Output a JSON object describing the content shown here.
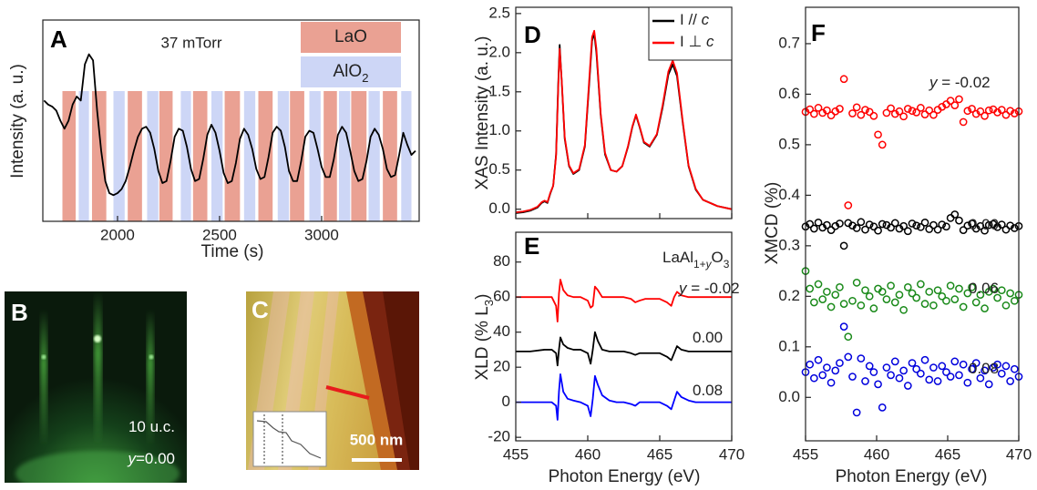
{
  "chart_data": [
    {
      "type": "line",
      "panel_label": "A",
      "title": "37 mTorr",
      "xlabel": "Time (s)",
      "ylabel": "Intensity (a. u.)",
      "xlim": [
        1634,
        3478
      ],
      "xticks": [
        2000,
        2500,
        3000
      ],
      "ylim": [
        0,
        1
      ],
      "x": [
        1640,
        1660,
        1680,
        1700,
        1720,
        1740,
        1760,
        1780,
        1800,
        1820,
        1840,
        1860,
        1880,
        1900,
        1920,
        1940,
        1960,
        1980,
        2000,
        2020,
        2040,
        2060,
        2080,
        2100,
        2120,
        2140,
        2160,
        2180,
        2200,
        2220,
        2240,
        2260,
        2280,
        2300,
        2320,
        2340,
        2360,
        2380,
        2400,
        2420,
        2440,
        2460,
        2480,
        2500,
        2520,
        2540,
        2560,
        2580,
        2600,
        2620,
        2640,
        2660,
        2680,
        2700,
        2720,
        2740,
        2760,
        2780,
        2800,
        2820,
        2840,
        2860,
        2880,
        2900,
        2920,
        2940,
        2960,
        2980,
        3000,
        3020,
        3040,
        3060,
        3080,
        3100,
        3120,
        3140,
        3160,
        3180,
        3200,
        3220,
        3240,
        3260,
        3280,
        3300,
        3320,
        3340,
        3360,
        3380,
        3400,
        3420,
        3440,
        3460
      ],
      "series": [
        {
          "color": "#000000",
          "values": [
            0.6,
            0.58,
            0.57,
            0.55,
            0.5,
            0.46,
            0.5,
            0.58,
            0.62,
            0.6,
            0.78,
            0.83,
            0.8,
            0.55,
            0.35,
            0.2,
            0.14,
            0.13,
            0.14,
            0.16,
            0.2,
            0.27,
            0.35,
            0.42,
            0.46,
            0.47,
            0.44,
            0.36,
            0.25,
            0.19,
            0.2,
            0.3,
            0.42,
            0.46,
            0.45,
            0.37,
            0.26,
            0.2,
            0.21,
            0.31,
            0.43,
            0.48,
            0.44,
            0.35,
            0.24,
            0.19,
            0.2,
            0.29,
            0.41,
            0.46,
            0.43,
            0.36,
            0.26,
            0.21,
            0.22,
            0.32,
            0.44,
            0.47,
            0.45,
            0.37,
            0.25,
            0.2,
            0.2,
            0.3,
            0.42,
            0.45,
            0.44,
            0.36,
            0.27,
            0.22,
            0.22,
            0.31,
            0.43,
            0.47,
            0.44,
            0.35,
            0.25,
            0.2,
            0.21,
            0.3,
            0.42,
            0.46,
            0.43,
            0.36,
            0.26,
            0.22,
            0.23,
            0.33,
            0.44,
            0.38,
            0.33,
            0.35
          ]
        }
      ],
      "shutters": [
        {
          "name": [
            {
              "text": "LaO"
            }
          ],
          "color": "#eaa193",
          "intervals": [
            [
              1730,
              1795
            ],
            [
              1875,
              1945
            ],
            [
              2050,
              2120
            ],
            [
              2205,
              2270
            ],
            [
              2370,
              2440
            ],
            [
              2525,
              2600
            ],
            [
              2690,
              2760
            ],
            [
              2845,
              2915
            ],
            [
              3010,
              3075
            ],
            [
              3145,
              3220
            ],
            [
              3300,
              3370
            ]
          ]
        },
        {
          "name": [
            {
              "text": "AlO"
            },
            {
              "text": "2",
              "sub": true
            }
          ],
          "color": "#cdd6f6",
          "intervals": [
            [
              1810,
              1860
            ],
            [
              1980,
              2035
            ],
            [
              2145,
              2200
            ],
            [
              2310,
              2360
            ],
            [
              2460,
              2515
            ],
            [
              2620,
              2675
            ],
            [
              2785,
              2840
            ],
            [
              2940,
              2995
            ],
            [
              3085,
              3140
            ],
            [
              3230,
              3285
            ],
            [
              3390,
              3440
            ]
          ]
        }
      ]
    },
    {
      "type": "line",
      "panel_label": "D",
      "ylabel": "XAS Intensity (a. u.)",
      "xlim": [
        455,
        470
      ],
      "xticks": [
        455,
        460,
        465,
        470
      ],
      "xtick_labels": false,
      "ylim": [
        -0.12,
        2.58
      ],
      "yticks": [
        {
          "value": 0,
          "label": "0.0"
        },
        {
          "value": 0.5,
          "label": "0.5"
        },
        {
          "value": 1,
          "label": "1.0"
        },
        {
          "value": 1.5,
          "label": "1.5"
        },
        {
          "value": 2,
          "label": "2.0"
        },
        {
          "value": 2.5,
          "label": "2.5"
        }
      ],
      "legend": "upper right",
      "x": [
        455,
        455.5,
        456,
        456.5,
        456.8,
        457,
        457.2,
        457.4,
        457.6,
        457.8,
        457.95,
        458.05,
        458.2,
        458.4,
        458.7,
        459,
        459.4,
        459.8,
        460.1,
        460.3,
        460.45,
        460.6,
        460.9,
        461.2,
        461.6,
        462,
        462.4,
        462.8,
        463.1,
        463.35,
        463.6,
        463.9,
        464.3,
        464.8,
        465.2,
        465.6,
        465.9,
        466.2,
        466.6,
        467,
        467.5,
        468,
        469,
        470
      ],
      "series": [
        {
          "name": [
            {
              "text": "I // "
            },
            {
              "text": "c",
              "italic": true
            }
          ],
          "color": "#000000",
          "values": [
            -0.05,
            -0.04,
            -0.02,
            0.02,
            0.08,
            0.1,
            0.08,
            0.2,
            0.3,
            0.7,
            1.6,
            2.1,
            1.6,
            0.9,
            0.55,
            0.45,
            0.5,
            0.8,
            1.6,
            2.15,
            2.25,
            2.0,
            1.2,
            0.7,
            0.5,
            0.48,
            0.55,
            0.8,
            1.05,
            1.2,
            1.05,
            0.85,
            0.8,
            0.95,
            1.3,
            1.72,
            1.85,
            1.7,
            1.1,
            0.55,
            0.25,
            0.12,
            0.04,
            0.0
          ]
        },
        {
          "name": [
            {
              "text": "I ⊥ "
            },
            {
              "text": "c",
              "italic": true
            }
          ],
          "color": "#ff0000",
          "values": [
            -0.04,
            -0.03,
            -0.01,
            0.03,
            0.09,
            0.11,
            0.09,
            0.21,
            0.3,
            0.68,
            1.55,
            2.05,
            1.62,
            0.92,
            0.56,
            0.46,
            0.51,
            0.82,
            1.65,
            2.2,
            2.28,
            2.05,
            1.22,
            0.72,
            0.5,
            0.48,
            0.55,
            0.81,
            1.06,
            1.21,
            1.06,
            0.86,
            0.81,
            0.96,
            1.33,
            1.76,
            1.9,
            1.74,
            1.12,
            0.56,
            0.26,
            0.12,
            0.04,
            0.0
          ]
        }
      ]
    },
    {
      "type": "line",
      "panel_label": "E",
      "ylabel": [
        {
          "text": "XLD (% L"
        },
        {
          "text": "3",
          "sub": true
        },
        {
          "text": ")"
        }
      ],
      "xlabel": "Photon Energy (eV)",
      "annotation": [
        {
          "text": "LaAl"
        },
        {
          "text": "1+",
          "sub": true
        },
        {
          "text": "y",
          "sub": true,
          "italic": true
        },
        {
          "text": "O"
        },
        {
          "text": "3",
          "sub": true
        }
      ],
      "xlim": [
        455,
        470
      ],
      "xticks": [
        455,
        460,
        465,
        470
      ],
      "ylim": [
        -22,
        97
      ],
      "yticks": [
        -20,
        0,
        20,
        40,
        60,
        80
      ],
      "x": [
        455,
        456,
        457,
        457.5,
        457.8,
        457.9,
        458.0,
        458.1,
        458.3,
        458.6,
        459,
        459.5,
        460,
        460.2,
        460.35,
        460.5,
        460.7,
        461,
        461.5,
        462,
        462.5,
        463,
        463.3,
        463.6,
        464,
        464.5,
        465,
        465.5,
        465.8,
        466,
        466.2,
        466.5,
        467,
        467.5,
        468,
        469,
        470
      ],
      "series": [
        {
          "name": [
            {
              "text": "y",
              "italic": true
            },
            {
              "text": " = -0.02"
            }
          ],
          "color": "#ff0000",
          "values": [
            60,
            60,
            60,
            60,
            55,
            46,
            62,
            70,
            64,
            61,
            60,
            60,
            58,
            54,
            55,
            66,
            64,
            60,
            60,
            60,
            60,
            59,
            57,
            58,
            59,
            59,
            59,
            57,
            55,
            60,
            63,
            61,
            60,
            60,
            60,
            60,
            60
          ]
        },
        {
          "name": [
            {
              "text": "0.00"
            }
          ],
          "color": "#000000",
          "values": [
            29,
            29,
            30,
            30,
            28,
            21,
            30,
            37,
            33,
            31,
            30,
            30,
            28,
            22,
            30,
            40,
            35,
            30,
            29,
            29,
            29,
            28,
            27,
            28,
            28,
            28,
            28,
            26,
            24,
            28,
            32,
            30,
            29,
            29,
            29,
            29,
            29
          ]
        },
        {
          "name": [
            {
              "text": "0.08"
            }
          ],
          "color": "#0000ff",
          "values": [
            0,
            0,
            0,
            0,
            -2,
            -10,
            6,
            16,
            6,
            2,
            1,
            0,
            -2,
            -8,
            2,
            15,
            10,
            4,
            1,
            0,
            0,
            -1,
            -2,
            0,
            0,
            0,
            0,
            -2,
            -4,
            1,
            6,
            3,
            1,
            0,
            0,
            0,
            0
          ]
        }
      ]
    },
    {
      "type": "scatter",
      "panel_label": "F",
      "ylabel": "XMCD (%)",
      "xlabel": "Photon Energy (eV)",
      "xlim": [
        455,
        470
      ],
      "xticks": [
        455,
        460,
        465,
        470
      ],
      "ylim": [
        -0.086,
        0.772
      ],
      "yticks": [
        {
          "value": 0,
          "label": "0.0"
        },
        {
          "value": 0.1,
          "label": "0.1"
        },
        {
          "value": 0.2,
          "label": "0.2"
        },
        {
          "value": 0.3,
          "label": "0.3"
        },
        {
          "value": 0.4,
          "label": "0.4"
        },
        {
          "value": 0.5,
          "label": "0.5"
        },
        {
          "value": 0.6,
          "label": "0.6"
        },
        {
          "value": 0.7,
          "label": "0.7"
        }
      ],
      "x": [
        455,
        455.3,
        455.6,
        455.9,
        456.2,
        456.5,
        456.8,
        457.1,
        457.4,
        457.7,
        458,
        458.3,
        458.6,
        458.9,
        459.2,
        459.5,
        459.8,
        460.1,
        460.4,
        460.7,
        461,
        461.3,
        461.6,
        461.9,
        462.2,
        462.5,
        462.8,
        463.1,
        463.4,
        463.7,
        464,
        464.3,
        464.6,
        464.9,
        465.2,
        465.5,
        465.8,
        466.1,
        466.4,
        466.7,
        467,
        467.3,
        467.6,
        467.9,
        468.2,
        468.5,
        468.8,
        469.1,
        469.4,
        469.7,
        470
      ],
      "series": [
        {
          "name": [
            {
              "text": "y",
              "italic": true
            },
            {
              "text": " = -0.02"
            }
          ],
          "color": "#ff0000",
          "values": [
            0.565,
            0.57,
            0.561,
            0.573,
            0.563,
            0.568,
            0.558,
            0.566,
            0.571,
            0.63,
            0.38,
            0.562,
            0.574,
            0.559,
            0.569,
            0.565,
            0.557,
            0.52,
            0.5,
            0.563,
            0.572,
            0.561,
            0.566,
            0.556,
            0.571,
            0.567,
            0.564,
            0.573,
            0.56,
            0.568,
            0.559,
            0.569,
            0.575,
            0.58,
            0.587,
            0.578,
            0.59,
            0.545,
            0.567,
            0.571,
            0.561,
            0.566,
            0.557,
            0.568,
            0.57,
            0.564,
            0.569,
            0.559,
            0.567,
            0.562,
            0.566
          ]
        },
        {
          "name": [
            {
              "text": "0.00"
            }
          ],
          "color": "#000000",
          "values": [
            0.338,
            0.343,
            0.334,
            0.346,
            0.336,
            0.341,
            0.331,
            0.339,
            0.344,
            0.3,
            0.345,
            0.34,
            0.335,
            0.347,
            0.332,
            0.342,
            0.338,
            0.33,
            0.343,
            0.341,
            0.336,
            0.345,
            0.334,
            0.339,
            0.329,
            0.344,
            0.34,
            0.337,
            0.346,
            0.333,
            0.341,
            0.332,
            0.342,
            0.338,
            0.355,
            0.362,
            0.35,
            0.331,
            0.34,
            0.344,
            0.334,
            0.339,
            0.33,
            0.341,
            0.343,
            0.337,
            0.342,
            0.332,
            0.34,
            0.335,
            0.339
          ]
        },
        {
          "name": [
            {
              "text": "0.06"
            }
          ],
          "color": "#1a8a1a",
          "values": [
            0.25,
            0.215,
            0.188,
            0.224,
            0.194,
            0.209,
            0.179,
            0.203,
            0.218,
            0.185,
            0.12,
            0.191,
            0.227,
            0.182,
            0.212,
            0.2,
            0.176,
            0.215,
            0.209,
            0.194,
            0.221,
            0.188,
            0.203,
            0.173,
            0.218,
            0.206,
            0.197,
            0.224,
            0.185,
            0.209,
            0.182,
            0.212,
            0.2,
            0.191,
            0.221,
            0.194,
            0.215,
            0.179,
            0.206,
            0.218,
            0.188,
            0.203,
            0.176,
            0.209,
            0.215,
            0.197,
            0.212,
            0.182,
            0.206,
            0.191,
            0.203
          ]
        },
        {
          "name": [
            {
              "text": "0.08"
            }
          ],
          "color": "#0000dd",
          "values": [
            0.05,
            0.065,
            0.038,
            0.074,
            0.044,
            0.059,
            0.029,
            0.053,
            0.068,
            0.14,
            0.08,
            0.041,
            -0.03,
            0.077,
            0.032,
            0.062,
            0.05,
            0.026,
            -0.02,
            0.059,
            0.044,
            0.071,
            0.038,
            0.053,
            0.023,
            0.068,
            0.056,
            0.047,
            0.074,
            0.035,
            0.059,
            0.032,
            0.062,
            0.05,
            0.041,
            0.071,
            0.044,
            0.065,
            0.029,
            0.056,
            0.068,
            0.038,
            0.053,
            0.026,
            0.059,
            0.065,
            0.047,
            0.062,
            0.032,
            0.056,
            0.041
          ]
        }
      ]
    }
  ],
  "panel_b": {
    "label": "B",
    "lines": [
      [
        {
          "text": "10 u.c."
        }
      ],
      [
        {
          "text": "y",
          "italic": true
        },
        {
          "text": "=0.00"
        }
      ]
    ]
  },
  "panel_c": {
    "label": "C",
    "scale_bar": "500 nm"
  }
}
